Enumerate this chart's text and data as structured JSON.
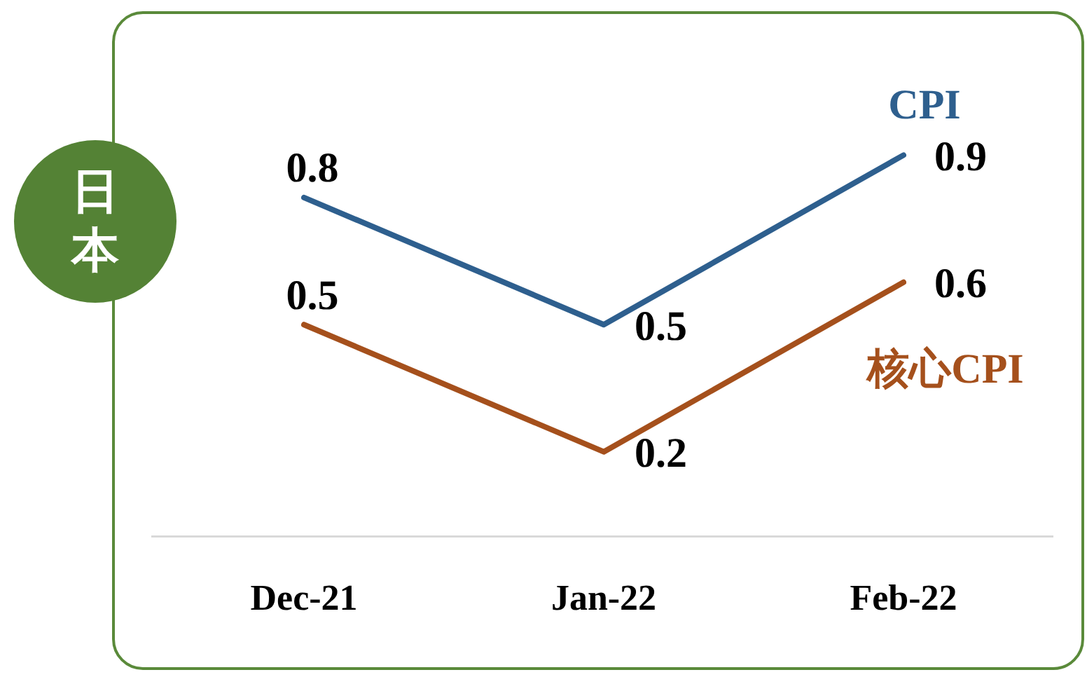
{
  "chart_data": {
    "type": "line",
    "title": "日本",
    "categories": [
      "Dec-21",
      "Jan-22",
      "Feb-22"
    ],
    "series": [
      {
        "name": "CPI",
        "color": "#2e5f8e",
        "values": [
          0.8,
          0.5,
          0.9
        ]
      },
      {
        "name": "核心CPI",
        "color": "#a5501c",
        "values": [
          0.5,
          0.2,
          0.6
        ]
      }
    ],
    "data_labels": true,
    "legend": false,
    "grid": false,
    "marker": "none",
    "line_style": "solid"
  }
}
